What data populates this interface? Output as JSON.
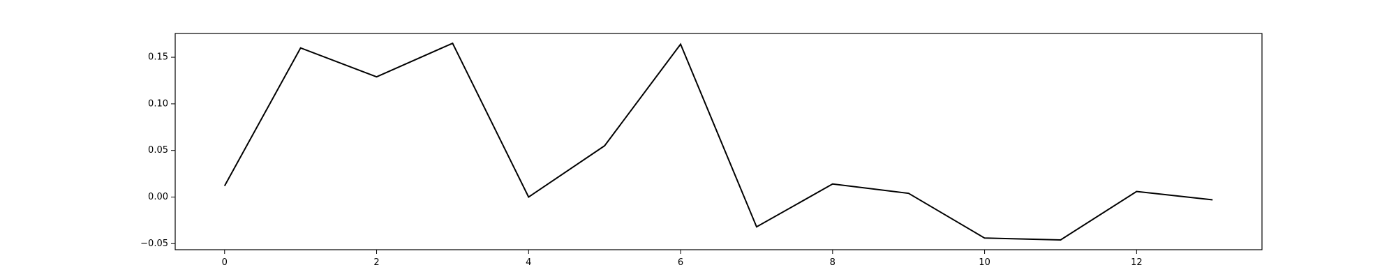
{
  "chart_data": {
    "type": "line",
    "title": "",
    "xlabel": "",
    "ylabel": "",
    "x": [
      0,
      1,
      2,
      3,
      4,
      5,
      6,
      7,
      8,
      9,
      10,
      11,
      12,
      13
    ],
    "series": [
      {
        "values": [
          0.012,
          0.16,
          0.129,
          0.165,
          0.0,
          0.055,
          0.164,
          -0.032,
          0.014,
          0.004,
          -0.044,
          -0.046,
          0.006,
          -0.003
        ],
        "color": "#000000"
      }
    ],
    "xlim": [
      -0.65,
      13.65
    ],
    "ylim": [
      -0.0565,
      0.1755
    ],
    "xticks": [
      0,
      2,
      4,
      6,
      8,
      10,
      12
    ],
    "xtick_labels": [
      "0",
      "2",
      "4",
      "6",
      "8",
      "10",
      "12"
    ],
    "yticks": [
      -0.05,
      0.0,
      0.05,
      0.1,
      0.15
    ],
    "ytick_labels": [
      "−0.05",
      "0.00",
      "0.05",
      "0.10",
      "0.15"
    ],
    "grid": false,
    "legend": "none"
  }
}
